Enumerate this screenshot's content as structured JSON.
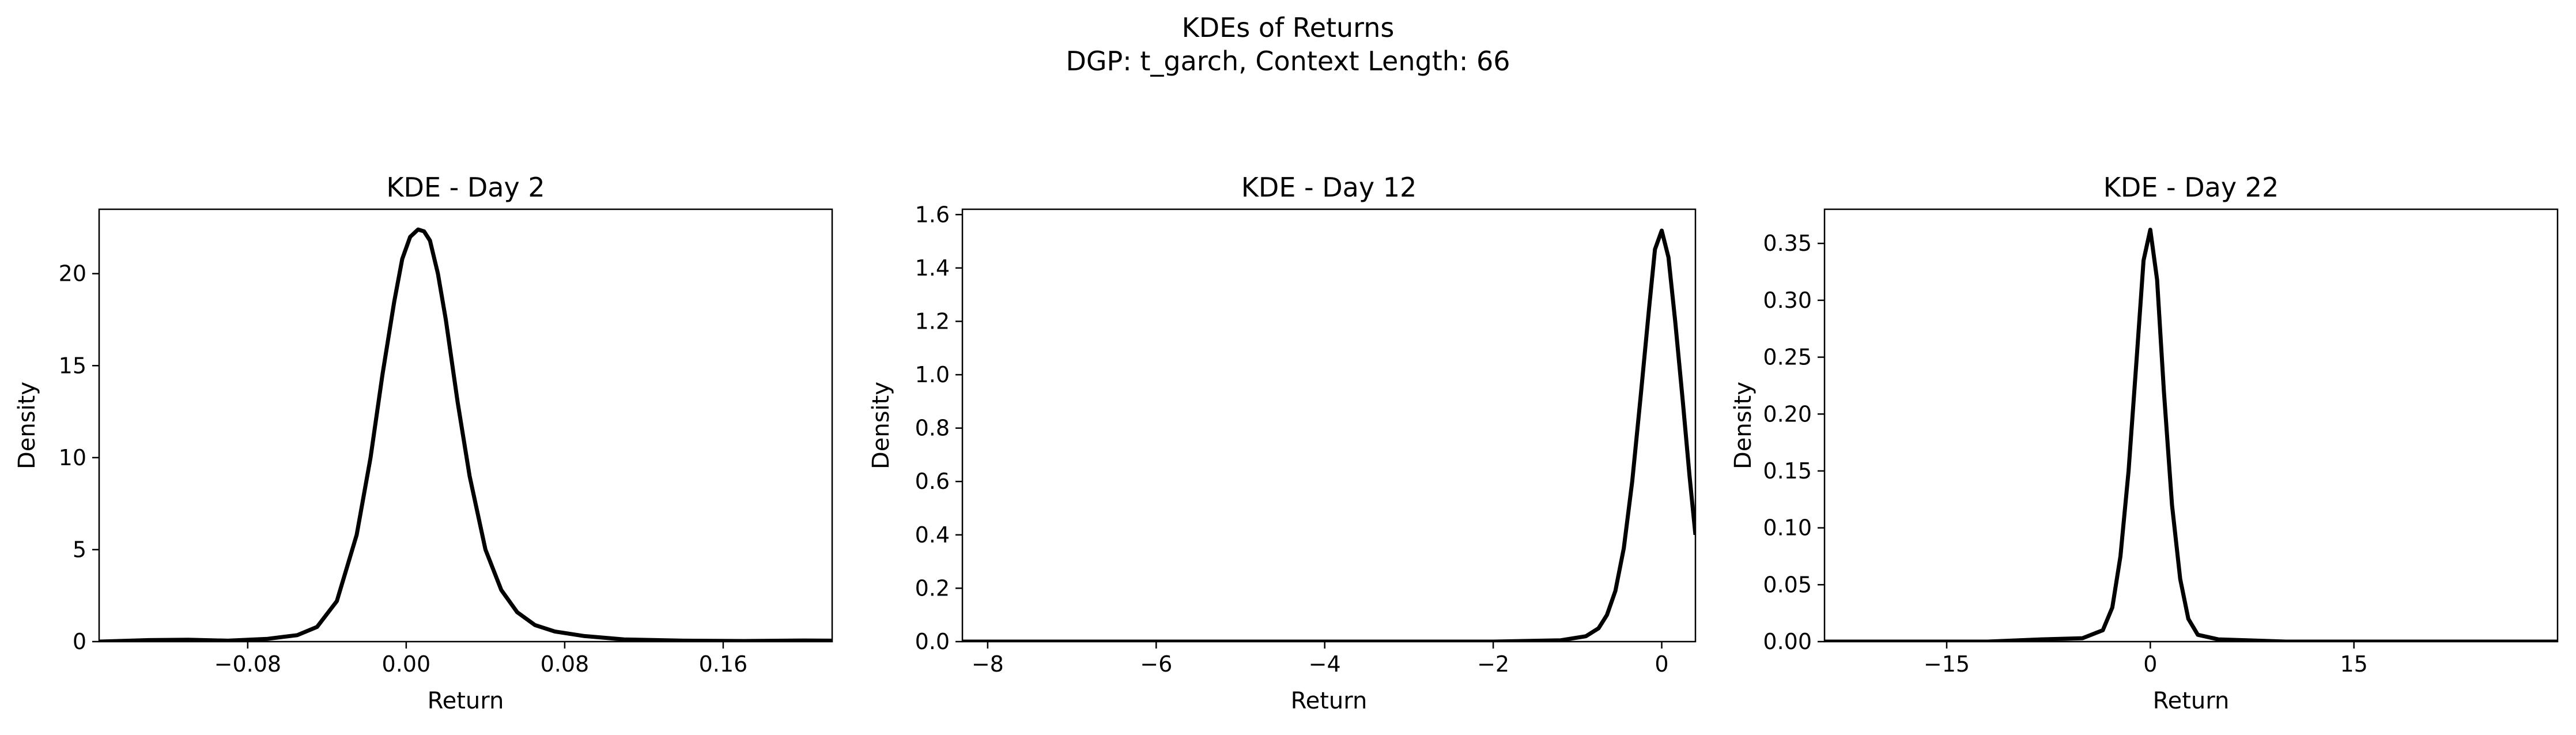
{
  "figure": {
    "title_line1": "KDEs of Returns",
    "title_line2": "DGP: t_garch, Context Length: 66"
  },
  "chart_data": [
    {
      "type": "line",
      "title": "KDE - Day 2",
      "xlabel": "Return",
      "ylabel": "Density",
      "xlim": [
        -0.155,
        0.215
      ],
      "ylim": [
        0,
        23.5
      ],
      "xticks": [
        -0.08,
        0.0,
        0.08,
        0.16
      ],
      "xtick_labels": [
        "−0.08",
        "0.00",
        "0.08",
        "0.16"
      ],
      "yticks": [
        0,
        5,
        10,
        15,
        20
      ],
      "ytick_labels": [
        "0",
        "5",
        "10",
        "15",
        "20"
      ],
      "grid": false,
      "line_color": "#000000",
      "series": [
        {
          "x": [
            -0.155,
            -0.13,
            -0.11,
            -0.09,
            -0.07,
            -0.055,
            -0.045,
            -0.035,
            -0.025,
            -0.018,
            -0.012,
            -0.006,
            -0.002,
            0.002,
            0.006,
            0.009,
            0.012,
            0.016,
            0.02,
            0.026,
            0.032,
            0.04,
            0.048,
            0.056,
            0.065,
            0.075,
            0.09,
            0.11,
            0.14,
            0.17,
            0.2,
            0.215
          ],
          "y": [
            0.0,
            0.08,
            0.1,
            0.05,
            0.15,
            0.35,
            0.8,
            2.2,
            5.8,
            10.0,
            14.5,
            18.5,
            20.8,
            22.0,
            22.4,
            22.3,
            21.8,
            20.0,
            17.5,
            13.0,
            9.0,
            5.0,
            2.8,
            1.6,
            0.9,
            0.55,
            0.3,
            0.12,
            0.05,
            0.03,
            0.06,
            0.05
          ]
        }
      ]
    },
    {
      "type": "line",
      "title": "KDE - Day 12",
      "xlabel": "Return",
      "ylabel": "Density",
      "xlim": [
        -8.3,
        0.4
      ],
      "ylim": [
        0,
        1.62
      ],
      "xticks": [
        -8,
        -6,
        -4,
        -2,
        0
      ],
      "xtick_labels": [
        "−8",
        "−6",
        "−4",
        "−2",
        "0"
      ],
      "yticks": [
        0.0,
        0.2,
        0.4,
        0.6,
        0.8,
        1.0,
        1.2,
        1.4,
        1.6
      ],
      "ytick_labels": [
        "0.0",
        "0.2",
        "0.4",
        "0.6",
        "0.8",
        "1.0",
        "1.2",
        "1.4",
        "1.6"
      ],
      "grid": false,
      "line_color": "#000000",
      "series": [
        {
          "x": [
            -8.3,
            -6.0,
            -4.0,
            -2.0,
            -1.2,
            -0.9,
            -0.75,
            -0.65,
            -0.55,
            -0.45,
            -0.35,
            -0.25,
            -0.15,
            -0.08,
            0.0,
            0.08,
            0.16,
            0.25,
            0.33,
            0.4
          ],
          "y": [
            0.0,
            0.0,
            0.0,
            0.0,
            0.005,
            0.02,
            0.05,
            0.1,
            0.19,
            0.35,
            0.6,
            0.92,
            1.25,
            1.47,
            1.54,
            1.44,
            1.2,
            0.9,
            0.62,
            0.4
          ]
        }
      ]
    },
    {
      "type": "line",
      "title": "KDE - Day 22",
      "xlabel": "Return",
      "ylabel": "Density",
      "xlim": [
        -24,
        30
      ],
      "ylim": [
        0,
        0.38
      ],
      "xticks": [
        -15,
        0,
        15
      ],
      "xtick_labels": [
        "−15",
        "0",
        "15"
      ],
      "yticks": [
        0.0,
        0.05,
        0.1,
        0.15,
        0.2,
        0.25,
        0.3,
        0.35
      ],
      "ytick_labels": [
        "0.00",
        "0.05",
        "0.10",
        "0.15",
        "0.20",
        "0.25",
        "0.30",
        "0.35"
      ],
      "grid": false,
      "line_color": "#000000",
      "series": [
        {
          "x": [
            -24,
            -12,
            -8,
            -5,
            -3.5,
            -2.8,
            -2.2,
            -1.6,
            -1.0,
            -0.5,
            0.0,
            0.5,
            1.0,
            1.6,
            2.2,
            2.8,
            3.5,
            5.0,
            10,
            20,
            30
          ],
          "y": [
            0.0,
            0.0,
            0.002,
            0.003,
            0.01,
            0.03,
            0.075,
            0.15,
            0.25,
            0.335,
            0.362,
            0.318,
            0.22,
            0.12,
            0.055,
            0.02,
            0.006,
            0.002,
            0.0,
            0.0,
            0.0
          ]
        }
      ]
    }
  ]
}
